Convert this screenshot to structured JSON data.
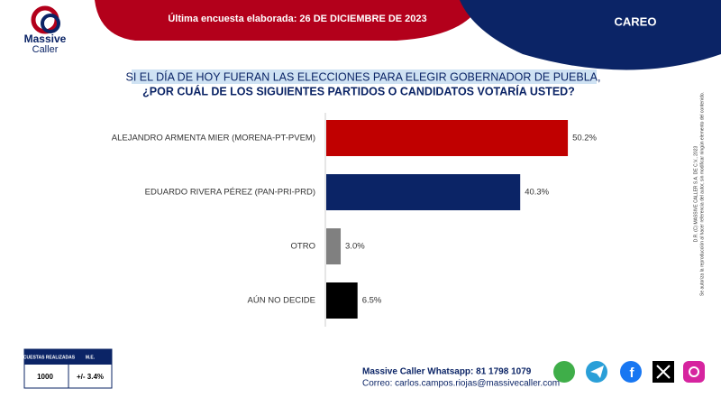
{
  "header": {
    "subtitle": "Última encuesta elaborada: 26 DE DICIEMBRE DE 2023",
    "section": "CAREO",
    "logo_top": "Massive",
    "logo_bottom": "Caller"
  },
  "chart_data": {
    "type": "hbar",
    "title_lines": [
      "SI EL DÍA DE HOY FUERAN LAS ELECCIONES PARA ELEGIR GOBERNADOR DE PUEBLA,",
      "¿POR CUÁL DE LOS SIGUIENTES PARTIDOS O CANDIDATOS  VOTARÍA USTED?"
    ],
    "categories": [
      "ALEJANDRO ARMENTA MIER (MORENA-PT-PVEM)",
      "EDUARDO RIVERA PÉREZ (PAN-PRI-PRD)",
      "OTRO",
      "AÚN NO DECIDE"
    ],
    "values": [
      50.2,
      40.3,
      3.0,
      6.5
    ],
    "value_labels": [
      "50.2%",
      "40.3%",
      "3.0%",
      "6.5%"
    ],
    "colors": [
      "#c00000",
      "#0b2466",
      "#808080",
      "#000000"
    ]
  },
  "footer": {
    "table_headers": [
      "ENCUESTAS REALIZADAS",
      "M.E."
    ],
    "table_values": [
      "1000",
      "+/- 3.4%"
    ],
    "whatsapp": "Massive Caller Whatsapp: 81 1798 1079",
    "email": "Correo: carlos.campos.riojas@massivecaller.com"
  },
  "side_note": [
    "D.R. (C) MASSIVE CALLER S.A. DE C.V., 2023",
    "Se autoriza la reproducción al hacer referencia del autor, sin modificar ningún elemento del contenido."
  ]
}
